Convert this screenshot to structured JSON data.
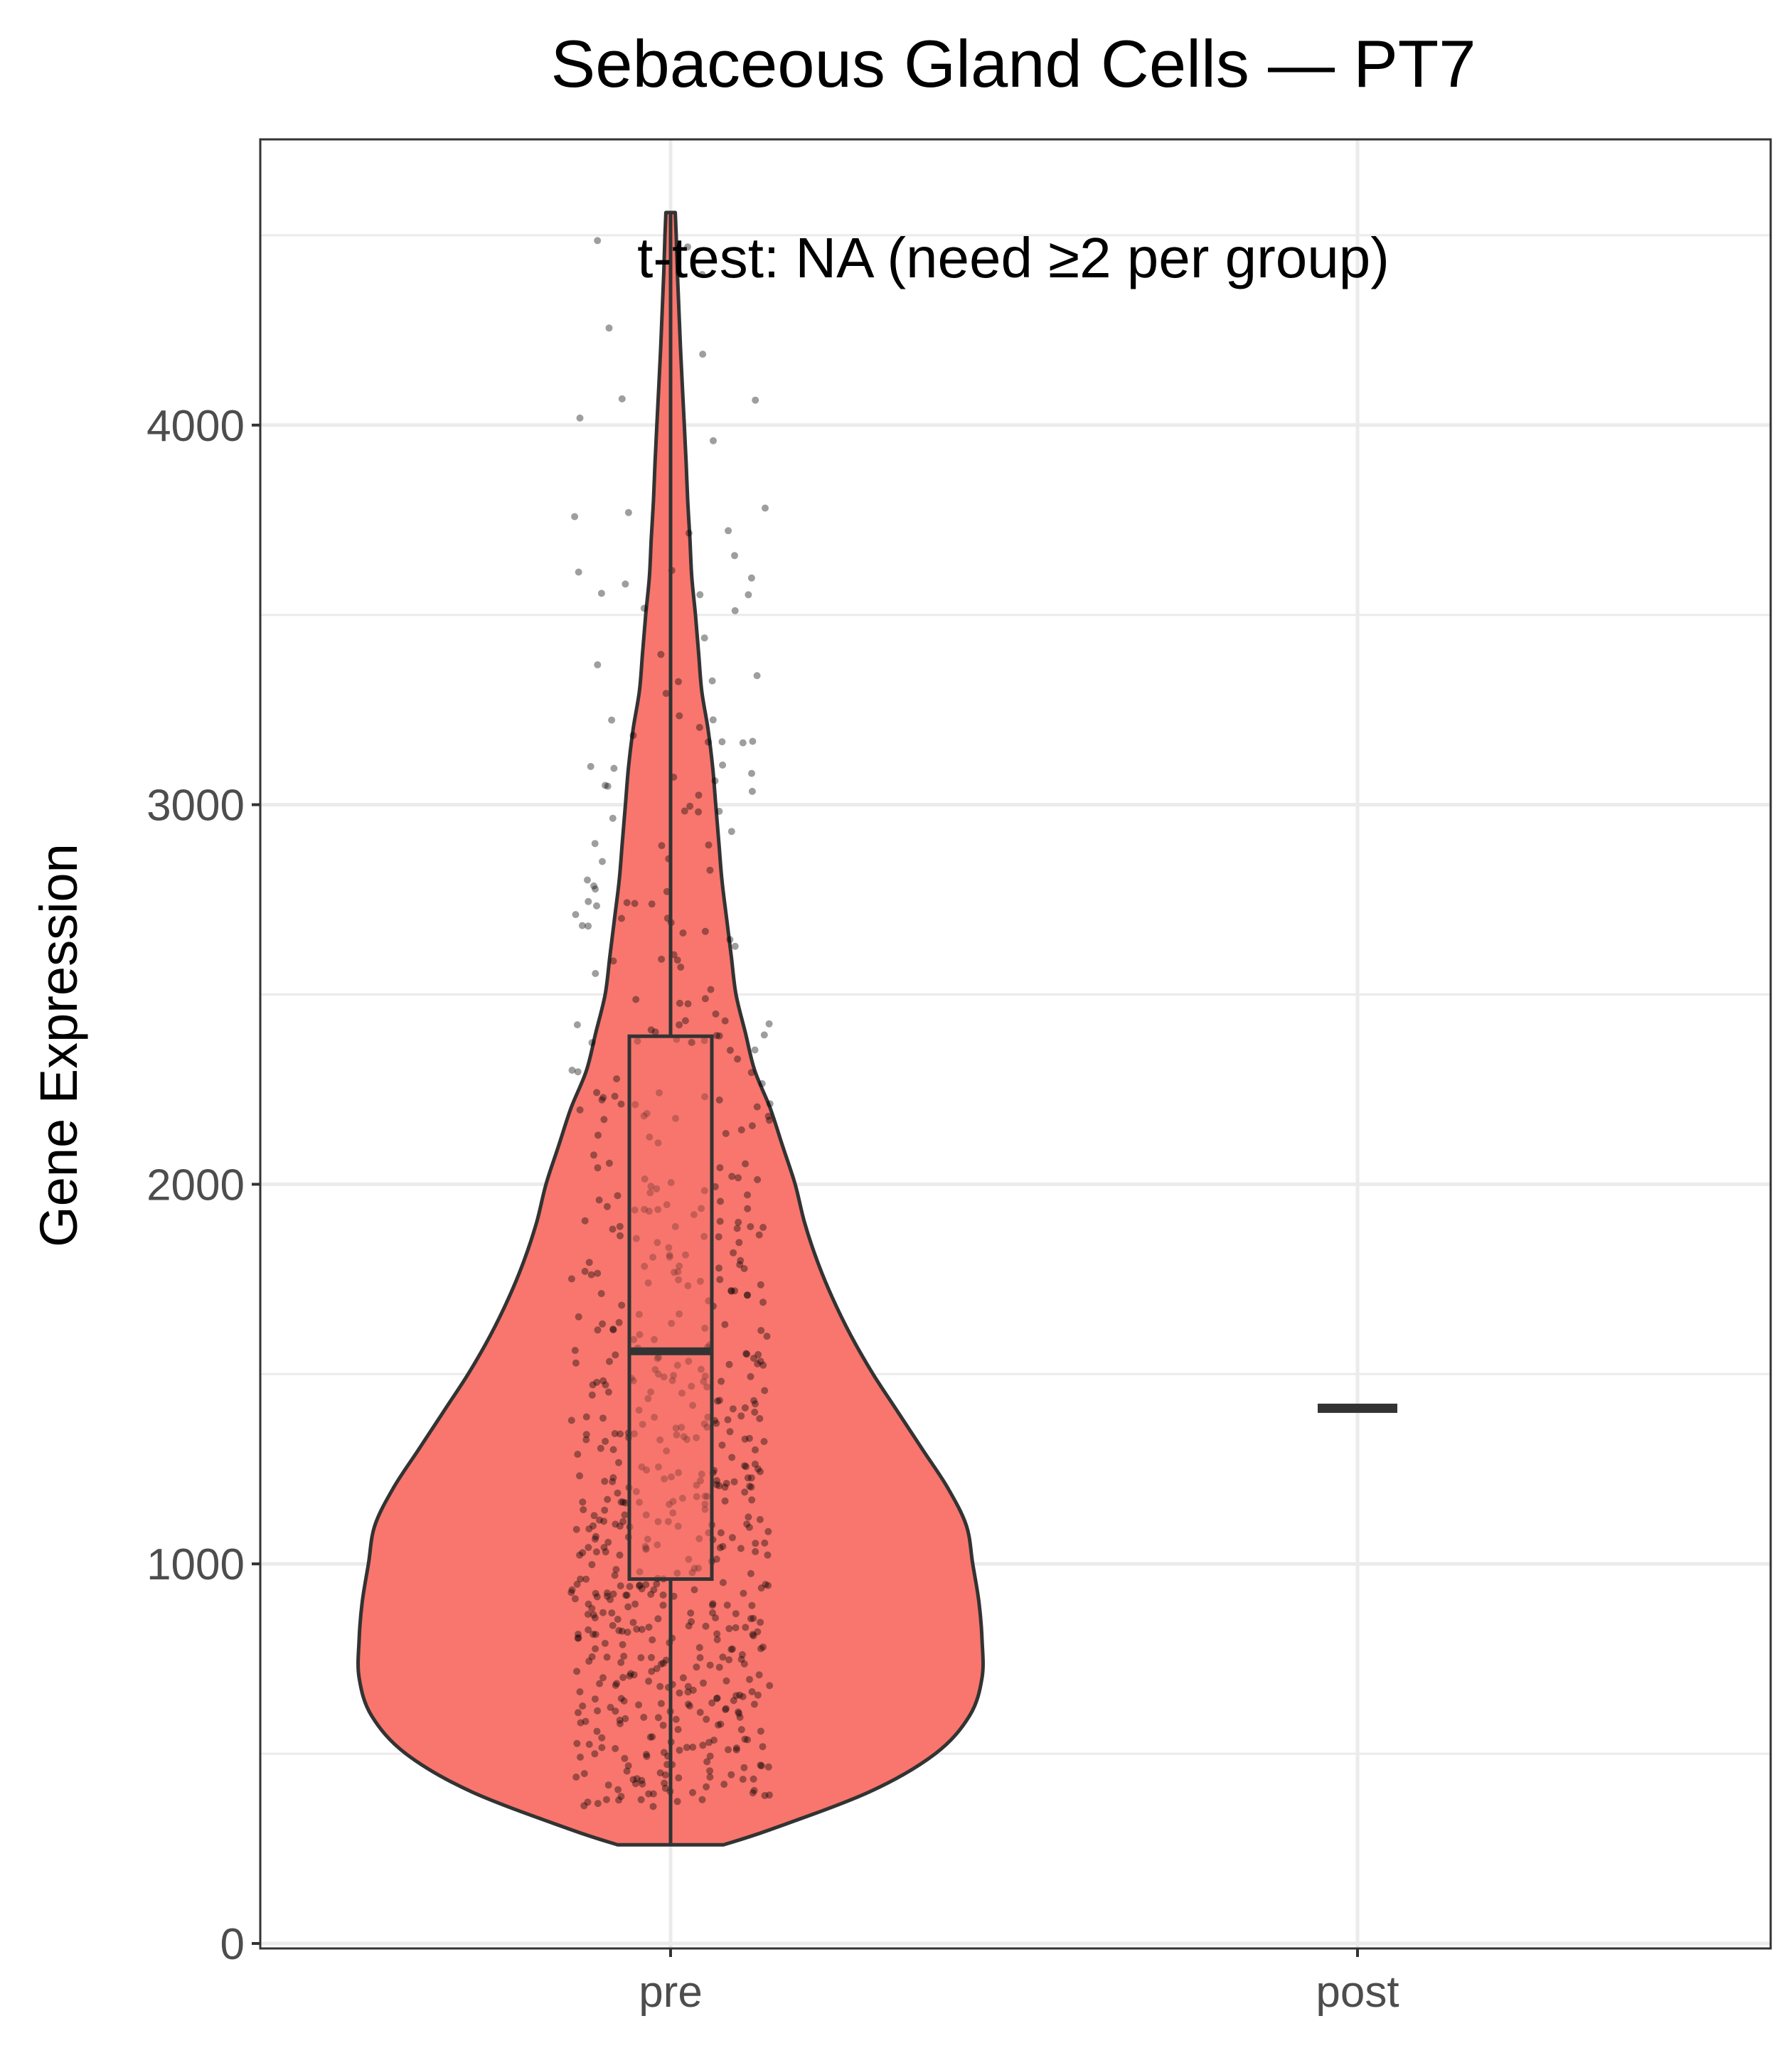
{
  "chart_data": {
    "type": "violin",
    "title": "Sebaceous Gland Cells — PT7",
    "xlabel": "",
    "ylabel": "Gene Expression",
    "categories": [
      "pre",
      "post"
    ],
    "yticks": [
      0,
      1000,
      2000,
      3000,
      4000
    ],
    "ylim": [
      0,
      4700
    ],
    "grid": true,
    "annotation": "t-test: NA (need ≥2 per group)",
    "fill_color": "#F8766D",
    "outline_color": "#333333",
    "groups": [
      {
        "name": "pre",
        "min": 260,
        "q1": 960,
        "median": 1560,
        "q3": 2390,
        "max": 4560,
        "n_points": 700,
        "density_profile": [
          [
            260,
            0.17
          ],
          [
            300,
            0.32
          ],
          [
            400,
            0.64
          ],
          [
            500,
            0.85
          ],
          [
            600,
            0.96
          ],
          [
            700,
            1.0
          ],
          [
            800,
            1.0
          ],
          [
            900,
            0.99
          ],
          [
            1000,
            0.97
          ],
          [
            1100,
            0.95
          ],
          [
            1200,
            0.89
          ],
          [
            1300,
            0.81
          ],
          [
            1400,
            0.73
          ],
          [
            1500,
            0.65
          ],
          [
            1600,
            0.58
          ],
          [
            1700,
            0.52
          ],
          [
            1800,
            0.47
          ],
          [
            1900,
            0.43
          ],
          [
            2000,
            0.4
          ],
          [
            2100,
            0.36
          ],
          [
            2200,
            0.32
          ],
          [
            2300,
            0.27
          ],
          [
            2400,
            0.24
          ],
          [
            2500,
            0.21
          ],
          [
            2600,
            0.195
          ],
          [
            2700,
            0.18
          ],
          [
            2800,
            0.165
          ],
          [
            2900,
            0.155
          ],
          [
            3000,
            0.145
          ],
          [
            3100,
            0.135
          ],
          [
            3200,
            0.12
          ],
          [
            3300,
            0.1
          ],
          [
            3400,
            0.09
          ],
          [
            3500,
            0.08
          ],
          [
            3600,
            0.068
          ],
          [
            3700,
            0.062
          ],
          [
            3800,
            0.055
          ],
          [
            3900,
            0.05
          ],
          [
            4000,
            0.044
          ],
          [
            4100,
            0.038
          ],
          [
            4200,
            0.032
          ],
          [
            4300,
            0.027
          ],
          [
            4400,
            0.022
          ],
          [
            4500,
            0.018
          ],
          [
            4560,
            0.015
          ]
        ]
      },
      {
        "name": "post",
        "values": [
          1410
        ]
      }
    ]
  }
}
